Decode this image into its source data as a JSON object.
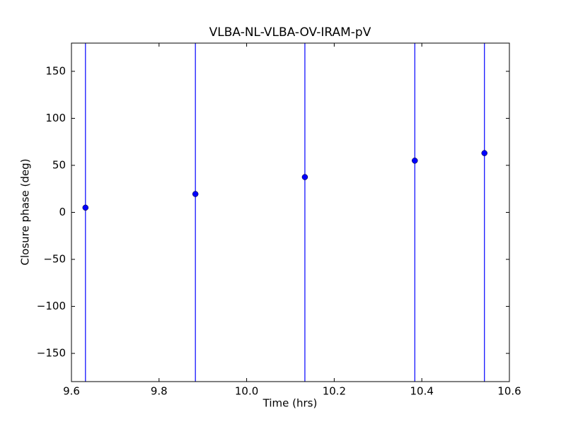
{
  "chart_data": {
    "type": "scatter",
    "title": "VLBA-NL-VLBA-OV-IRAM-pV",
    "x_label": "Time (hrs)",
    "y_label": "Closure phase (deg)",
    "x": [
      9.632,
      9.883,
      10.133,
      10.384,
      10.543
    ],
    "values": [
      5,
      19.5,
      37.5,
      55,
      63
    ],
    "errors": [
      250,
      250,
      250,
      250,
      250
    ],
    "color": "#0000ff",
    "xlim": [
      9.6,
      10.6
    ],
    "xticks": [
      9.6,
      9.8,
      {
        "value": 10,
        "label": "10.0"
      },
      10.2,
      10.4,
      10.6
    ],
    "ylim": [
      -180,
      180
    ],
    "yticks": [
      {
        "value": -150,
        "label": "−150"
      },
      {
        "value": -100,
        "label": "−100"
      },
      {
        "value": -50,
        "label": "−50"
      },
      0,
      50,
      100,
      150
    ],
    "grid": false
  }
}
